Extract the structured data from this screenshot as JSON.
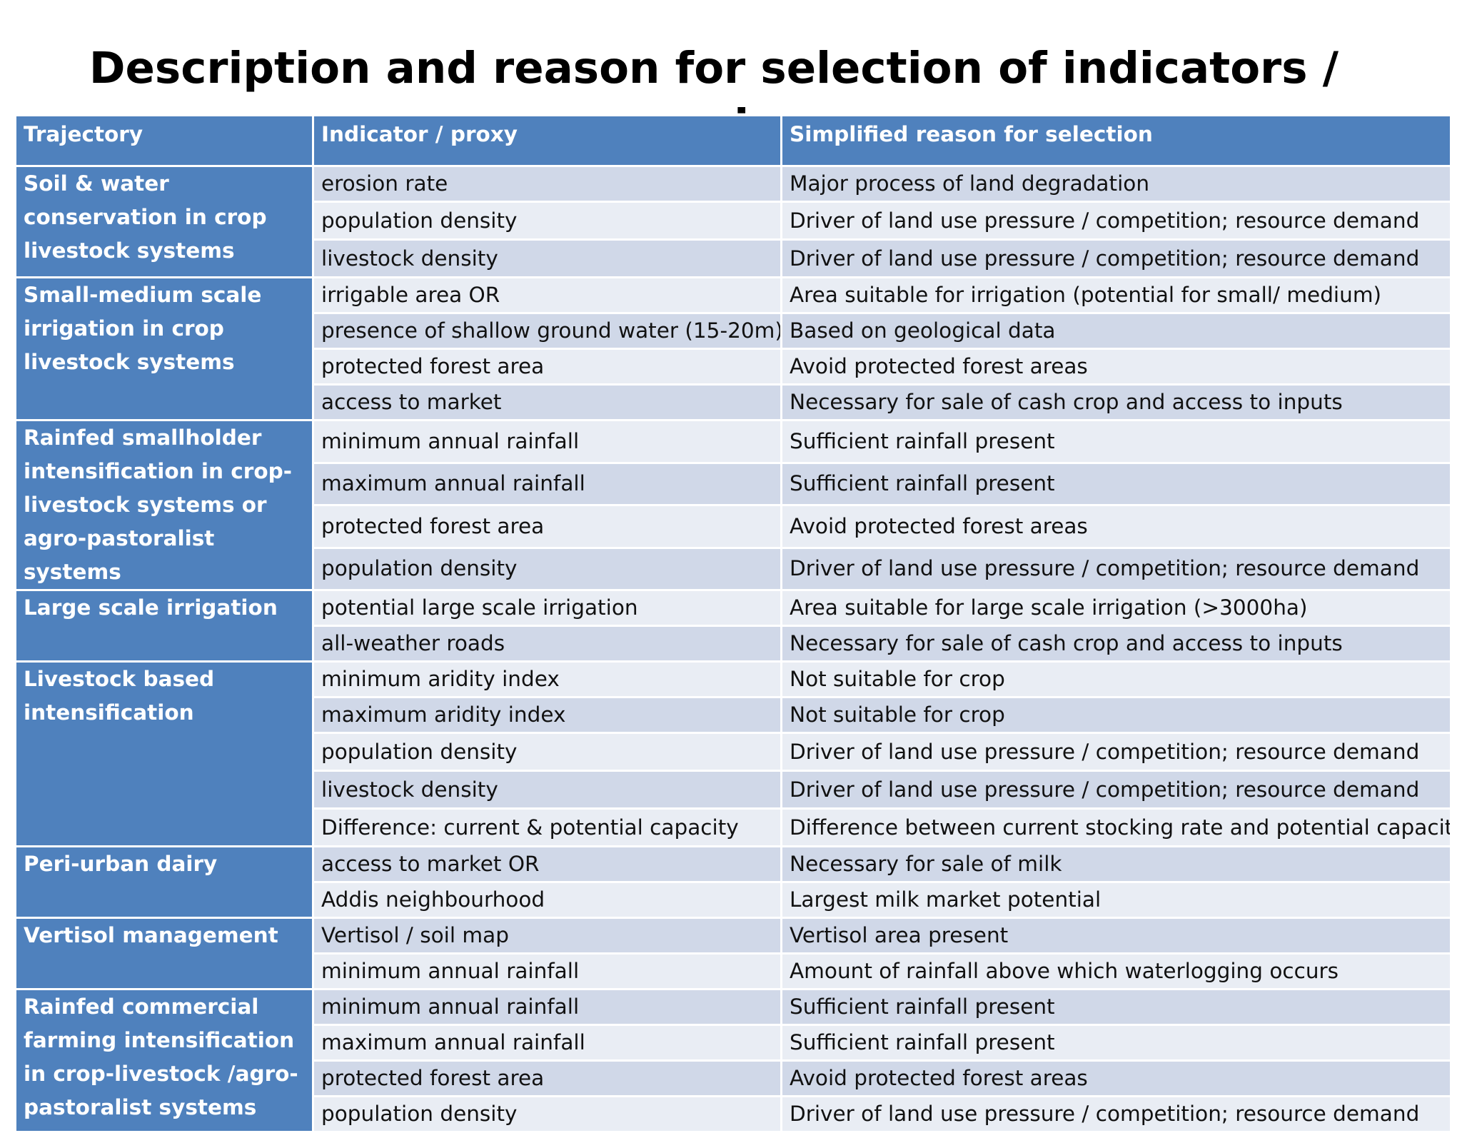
{
  "slide": {
    "title": "Description and reason for selection of indicators / proxies"
  },
  "table": {
    "headers": [
      "Trajectory",
      "Indicator / proxy",
      "Simplified reason for selection"
    ],
    "groups": [
      {
        "trajectory": "Soil & water conservation in crop livestock systems",
        "rows": [
          [
            "erosion rate",
            "Major process of land degradation"
          ],
          [
            "population density",
            "Driver of land use pressure / competition; resource demand"
          ],
          [
            "livestock density",
            "Driver of land use pressure / competition; resource demand"
          ]
        ]
      },
      {
        "trajectory": "Small-medium scale irrigation in crop livestock systems",
        "rows": [
          [
            "irrigable area  OR",
            "Area suitable for irrigation (potential for  small/ medium)"
          ],
          [
            "presence of shallow ground water (15-20m)",
            "Based on geological data"
          ],
          [
            "protected forest area",
            "Avoid protected forest areas"
          ],
          [
            "access to market",
            "Necessary for sale of cash crop and access to inputs"
          ]
        ]
      },
      {
        "trajectory": "Rainfed smallholder intensification in crop-livestock systems or agro-pastoralist systems",
        "rows": [
          [
            "minimum annual rainfall",
            "Sufficient rainfall present"
          ],
          [
            "maximum annual rainfall",
            "Sufficient rainfall present"
          ],
          [
            "protected forest area",
            "Avoid protected forest areas"
          ],
          [
            "population density",
            "Driver of land use pressure / competition; resource demand"
          ]
        ]
      },
      {
        "trajectory": "Large scale irrigation",
        "rows": [
          [
            "potential large scale irrigation",
            "Area suitable for large scale irrigation (>3000ha)"
          ],
          [
            "all-weather roads",
            "Necessary for sale of cash crop and access to inputs"
          ]
        ]
      },
      {
        "trajectory": "Livestock based intensification",
        "rows": [
          [
            "minimum aridity index",
            "Not suitable for crop"
          ],
          [
            "maximum aridity index",
            "Not suitable for crop"
          ],
          [
            "population density",
            "Driver of land use pressure / competition; resource demand"
          ],
          [
            "livestock density",
            "Driver of land use pressure / competition; resource demand"
          ],
          [
            "Difference: current & potential capacity",
            "Difference between current stocking rate and potential capacity"
          ]
        ]
      },
      {
        "trajectory": "Peri-urban dairy",
        "rows": [
          [
            "access to market OR",
            "Necessary for sale of milk"
          ],
          [
            "Addis  neighbourhood",
            "Largest milk market potential"
          ]
        ]
      },
      {
        "trajectory": "Vertisol management",
        "rows": [
          [
            "Vertisol / soil map",
            "Vertisol area present"
          ],
          [
            "minimum annual rainfall",
            "Amount of rainfall above which waterlogging occurs"
          ]
        ]
      },
      {
        "trajectory": "Rainfed commercial farming  intensification in crop-livestock /agro-pastoralist systems",
        "rows": [
          [
            "minimum annual rainfall",
            "Sufficient rainfall present"
          ],
          [
            "maximum annual rainfall",
            "Sufficient rainfall present"
          ],
          [
            "protected forest area",
            "Avoid protected forest areas"
          ],
          [
            "population density",
            "Driver of land use pressure / competition; resource demand"
          ]
        ]
      }
    ]
  }
}
